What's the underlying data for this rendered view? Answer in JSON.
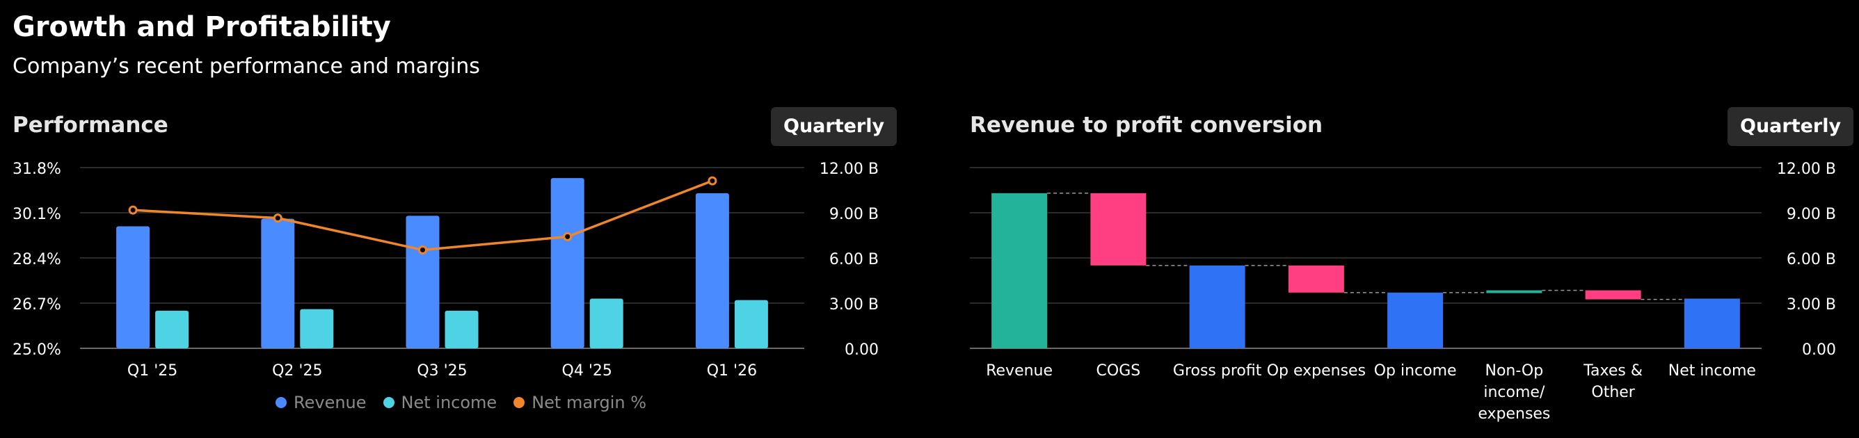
{
  "header": {
    "title": "Growth and Profitability",
    "subtitle": "Company’s recent performance and margins"
  },
  "colors": {
    "revenue": "#4a8cff",
    "net_income": "#4dd3e3",
    "net_margin": "#f0862b",
    "positive": "#22b39a",
    "negative": "#ff3f82",
    "total": "#2f72f5",
    "grid": "#2a2a2a",
    "axis": "#6a6a6a"
  },
  "chart_data": [
    {
      "type": "bar",
      "title": "Performance",
      "period_button": "Quarterly",
      "categories": [
        "Q1 '25",
        "Q2 '25",
        "Q3 '25",
        "Q4 '25",
        "Q1 '26"
      ],
      "series": [
        {
          "name": "Revenue",
          "axis": "right",
          "values": [
            8.1,
            8.6,
            8.8,
            11.3,
            10.3
          ]
        },
        {
          "name": "Net income",
          "axis": "right",
          "values": [
            2.5,
            2.6,
            2.5,
            3.3,
            3.2
          ]
        },
        {
          "name": "Net margin %",
          "axis": "left",
          "type": "line",
          "values": [
            30.2,
            29.9,
            28.7,
            29.2,
            31.3
          ]
        }
      ],
      "y_left": {
        "range": [
          25.0,
          31.8
        ],
        "ticks": [
          "31.8%",
          "30.1%",
          "28.4%",
          "26.7%",
          "25.0%"
        ]
      },
      "y_right": {
        "range": [
          0,
          12
        ],
        "ticks": [
          "12.00 B",
          "9.00 B",
          "6.00 B",
          "3.00 B",
          "0.00"
        ]
      },
      "legend": [
        "Revenue",
        "Net income",
        "Net margin %"
      ]
    },
    {
      "type": "waterfall",
      "title": "Revenue to profit conversion",
      "period_button": "Quarterly",
      "categories": [
        [
          "Revenue"
        ],
        [
          "COGS"
        ],
        [
          "Gross profit"
        ],
        [
          "Op expenses"
        ],
        [
          "Op income"
        ],
        [
          "Non-Op",
          "income/",
          "expenses"
        ],
        [
          "Taxes &",
          "Other"
        ],
        [
          "Net income"
        ]
      ],
      "steps": [
        {
          "label": "Revenue",
          "kind": "total",
          "value": 10.3
        },
        {
          "label": "COGS",
          "kind": "negative",
          "value": -4.8
        },
        {
          "label": "Gross profit",
          "kind": "subtotal",
          "value": 5.5
        },
        {
          "label": "Op expenses",
          "kind": "negative",
          "value": -1.8
        },
        {
          "label": "Op income",
          "kind": "subtotal",
          "value": 3.7
        },
        {
          "label": "Non-Op income/ expenses",
          "kind": "positive",
          "value": 0.15
        },
        {
          "label": "Taxes & Other",
          "kind": "negative",
          "value": -0.6
        },
        {
          "label": "Net income",
          "kind": "subtotal",
          "value": 3.3
        }
      ],
      "y_right": {
        "range": [
          0,
          12
        ],
        "ticks": [
          "12.00 B",
          "9.00 B",
          "6.00 B",
          "3.00 B",
          "0.00"
        ]
      }
    }
  ]
}
